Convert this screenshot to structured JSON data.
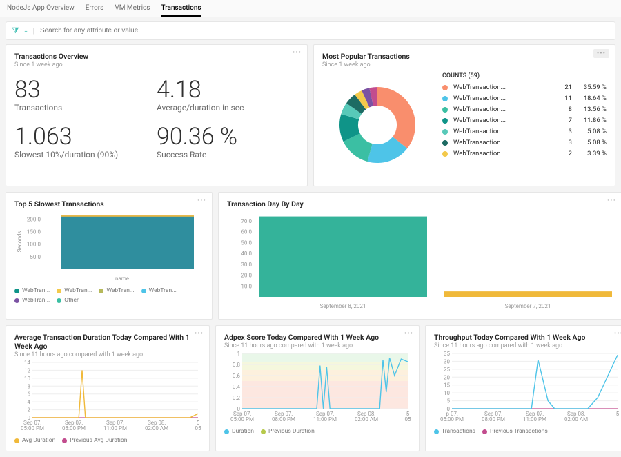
{
  "tabs": [
    "NodeJs App Overview",
    "Errors",
    "VM Metrics",
    "Transactions"
  ],
  "activeTab": 3,
  "search": {
    "placeholder": "Search for any attribute or value."
  },
  "overview": {
    "title": "Transactions Overview",
    "subtitle": "Since 1 week ago",
    "metrics": [
      {
        "value": "83",
        "label": "Transactions"
      },
      {
        "value": "4.18",
        "label": "Average/duration in sec"
      },
      {
        "value": "1.063",
        "label": "Slowest 10%/duration (90%)"
      },
      {
        "value": "90.36 %",
        "label": "Success Rate"
      }
    ]
  },
  "popular": {
    "title": "Most Popular Transactions",
    "subtitle": "Since 1 week ago",
    "countsHeader": "COUNTS (59)",
    "donut": {
      "slices": [
        {
          "value": 35.59,
          "color": "#f98e6d"
        },
        {
          "value": 18.64,
          "color": "#4ec4e8"
        },
        {
          "value": 13.56,
          "color": "#3bbfa3"
        },
        {
          "value": 11.86,
          "color": "#0f9488"
        },
        {
          "value": 5.08,
          "color": "#58c9b9"
        },
        {
          "value": 5.08,
          "color": "#1d6b63"
        },
        {
          "value": 3.39,
          "color": "#f3c94b"
        },
        {
          "value": 3.4,
          "color": "#7b52a3"
        },
        {
          "value": 3.4,
          "color": "#c24c8e"
        }
      ]
    },
    "rows": [
      {
        "color": "#f98e6d",
        "label": "WebTransaction...",
        "count": 21,
        "pct": "35.59 %"
      },
      {
        "color": "#4ec4e8",
        "label": "WebTransaction...",
        "count": 11,
        "pct": "18.64 %"
      },
      {
        "color": "#3bbfa3",
        "label": "WebTransaction...",
        "count": 8,
        "pct": "13.56 %"
      },
      {
        "color": "#0f9488",
        "label": "WebTransaction...",
        "count": 7,
        "pct": "11.86 %"
      },
      {
        "color": "#58c9b9",
        "label": "WebTransaction...",
        "count": 3,
        "pct": "5.08 %"
      },
      {
        "color": "#1d6b63",
        "label": "WebTransaction...",
        "count": 3,
        "pct": "5.08 %"
      },
      {
        "color": "#f3c94b",
        "label": "WebTransaction...",
        "count": 2,
        "pct": "3.39 %"
      }
    ]
  },
  "slowest": {
    "title": "Top 5 Slowest Transactions",
    "ylabel": "Seconds",
    "xlabel": "name",
    "ylim": [
      0,
      220
    ],
    "yticks": [
      50,
      100,
      150,
      200
    ],
    "barColor": "#2f8e9e",
    "barTop": "#e8b94a",
    "value": 215,
    "legend": [
      {
        "c": "#0f9488",
        "t": "WebTran..."
      },
      {
        "c": "#f3c94b",
        "t": "WebTran..."
      },
      {
        "c": "#b6b95b",
        "t": "WebTran..."
      },
      {
        "c": "#4ec4e8",
        "t": "WebTran..."
      },
      {
        "c": "#7b52a3",
        "t": "WebTran..."
      },
      {
        "c": "#3bbfa3",
        "t": "Other"
      }
    ]
  },
  "dayByDay": {
    "title": "Transaction Day By Day",
    "ylim": [
      0,
      75
    ],
    "yticks": [
      10,
      20,
      30,
      40,
      50,
      60,
      70
    ],
    "bars": [
      {
        "label": "September 8, 2021",
        "value": 74,
        "color": "#34b39a"
      },
      {
        "label": "September 7, 2021",
        "value": 5,
        "color": "#f0b93a"
      }
    ]
  },
  "avgDur": {
    "title": "Average Transaction Duration Today Compared With 1 Week Ago",
    "subtitle": "Since 11 hours ago compared with 1 week ago",
    "xticks": [
      "Sep 07,\n05:00 PM",
      "Sep 07,\n08:00 PM",
      "Sep 07,\n11:00 PM",
      "Sep 08,\n02:00 AM",
      "5\n05"
    ],
    "ylim": [
      0,
      14
    ],
    "yticks": [
      0,
      2,
      4,
      6,
      8,
      10,
      12,
      14
    ],
    "series": {
      "color": "#f0b93a",
      "points": [
        [
          0,
          0
        ],
        [
          0.28,
          0
        ],
        [
          0.3,
          12
        ],
        [
          0.32,
          0
        ],
        [
          0.95,
          0
        ],
        [
          1,
          1
        ]
      ]
    },
    "prev": {
      "color": "#c24c8e"
    },
    "legend": [
      {
        "c": "#f0b93a",
        "t": "Avg Duration"
      },
      {
        "c": "#c24c8e",
        "t": "Previous Avg Duration"
      }
    ]
  },
  "adpex": {
    "title": "Adpex Score Today Compared With 1 Week Ago",
    "subtitle": "Since 11 hours ago compared with 1 week ago",
    "xticks": [
      "Sep 07,\n05:00 PM",
      "Sep 07,\n08:00 PM",
      "Sep 07,\n11:00 PM",
      "Sep 08,\n02:00 AM",
      "5\n05"
    ],
    "ylim": [
      0,
      1
    ],
    "yticks": [
      0,
      0.2,
      0.4,
      0.6,
      0.8,
      1
    ],
    "bands": [
      [
        "#e9f7e9",
        0.85,
        1
      ],
      [
        "#f5f7dd",
        0.7,
        0.85
      ],
      [
        "#fdf0dd",
        0.5,
        0.7
      ],
      [
        "#fde7e0",
        0,
        0.5
      ]
    ],
    "series": {
      "color": "#4ec4e8",
      "points": [
        [
          0,
          0
        ],
        [
          0.45,
          0
        ],
        [
          0.47,
          0.78
        ],
        [
          0.49,
          0
        ],
        [
          0.51,
          0.75
        ],
        [
          0.53,
          0
        ],
        [
          0.83,
          0
        ],
        [
          0.85,
          0.88
        ],
        [
          0.87,
          0.3
        ],
        [
          0.89,
          0.92
        ],
        [
          0.92,
          0.6
        ],
        [
          0.96,
          0.9
        ],
        [
          1,
          0.85
        ]
      ]
    },
    "legend": [
      {
        "c": "#4ec4e8",
        "t": "Duration"
      },
      {
        "c": "#b6c94b",
        "t": "Previous Duration"
      }
    ]
  },
  "throughput": {
    "title": "Throughput Today Compared With 1 Week Ago",
    "subtitle": "Since 11 hours ago compared with 1 week ago",
    "xticks": [
      "p 07,\n05:00 PM",
      "Sep 07,\n08:00 PM",
      "Sep 07,\n11:00 PM",
      "Sep 08,\n02:00 AM",
      "5"
    ],
    "ylim": [
      0,
      35
    ],
    "yticks": [
      0,
      5,
      10,
      15,
      20,
      25,
      30,
      35
    ],
    "series": {
      "color": "#4ec4e8",
      "points": [
        [
          0,
          0
        ],
        [
          0.48,
          0
        ],
        [
          0.52,
          31
        ],
        [
          0.58,
          5
        ],
        [
          0.62,
          0
        ],
        [
          0.82,
          0
        ],
        [
          0.88,
          7
        ],
        [
          1,
          34
        ]
      ]
    },
    "prev": {
      "color": "#c24c8e"
    },
    "legend": [
      {
        "c": "#4ec4e8",
        "t": "Transactions"
      },
      {
        "c": "#c24c8e",
        "t": "Previous Transactions"
      }
    ]
  }
}
